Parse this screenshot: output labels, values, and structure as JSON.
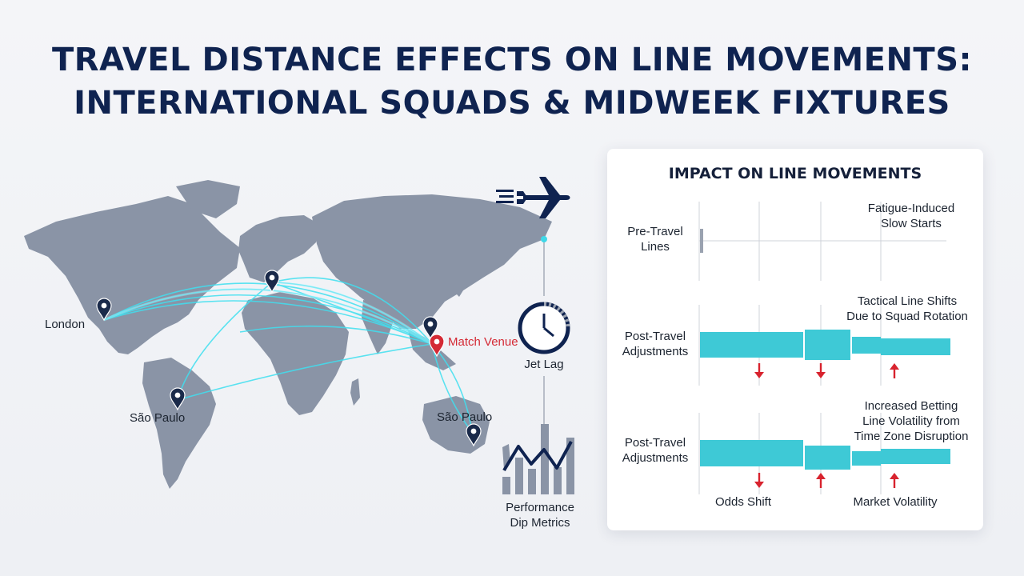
{
  "title": {
    "line1": "TRAVEL DISTANCE EFFECTS ON LINE MOVEMENTS:",
    "line2": "INTERNATIONAL SQUADS & MIDWEEK FIXTURES"
  },
  "map": {
    "pins": {
      "london": "London",
      "sao_paulo_sa": "São Paulo",
      "match_venue": "Match Venue",
      "sao_paulo_au": "São Paulo"
    },
    "colors": {
      "land": "#8a94a6",
      "route": "#3fe0f0",
      "pin": "#1a2a4a",
      "venue_pin": "#d42a35"
    }
  },
  "timeline": {
    "plane_icon": "plane-icon",
    "clock_icon": "clock-icon",
    "jet_lag": "Jet Lag",
    "metrics_line1": "Performance",
    "metrics_line2": "Dip Metrics"
  },
  "panel": {
    "title": "IMPACT ON LINE MOVEMENTS",
    "row1": {
      "label_line1": "Pre-Travel",
      "label_line2": "Lines",
      "note_line1": "Fatigue-Induced",
      "note_line2": "Slow Starts"
    },
    "row2": {
      "label_line1": "Post-Travel",
      "label_line2": "Adjustments",
      "note_line1": "Tactical Line Shifts",
      "note_line2": "Due to Squad Rotation",
      "arrows": [
        "down",
        "down",
        "up"
      ]
    },
    "row3": {
      "label_line1": "Post-Travel",
      "label_line2": "Adjustments",
      "note_line1": "Increased Betting",
      "note_line2": "Line Volatility from",
      "note_line3": "Time Zone Disruption",
      "arrows": [
        "down",
        "up",
        "up"
      ]
    },
    "bottom_left": "Odds Shift",
    "bottom_right": "Market Volatility",
    "colors": {
      "bar": "#3ec9d6",
      "arrow": "#d8232e",
      "grid": "#cfd3da"
    }
  }
}
